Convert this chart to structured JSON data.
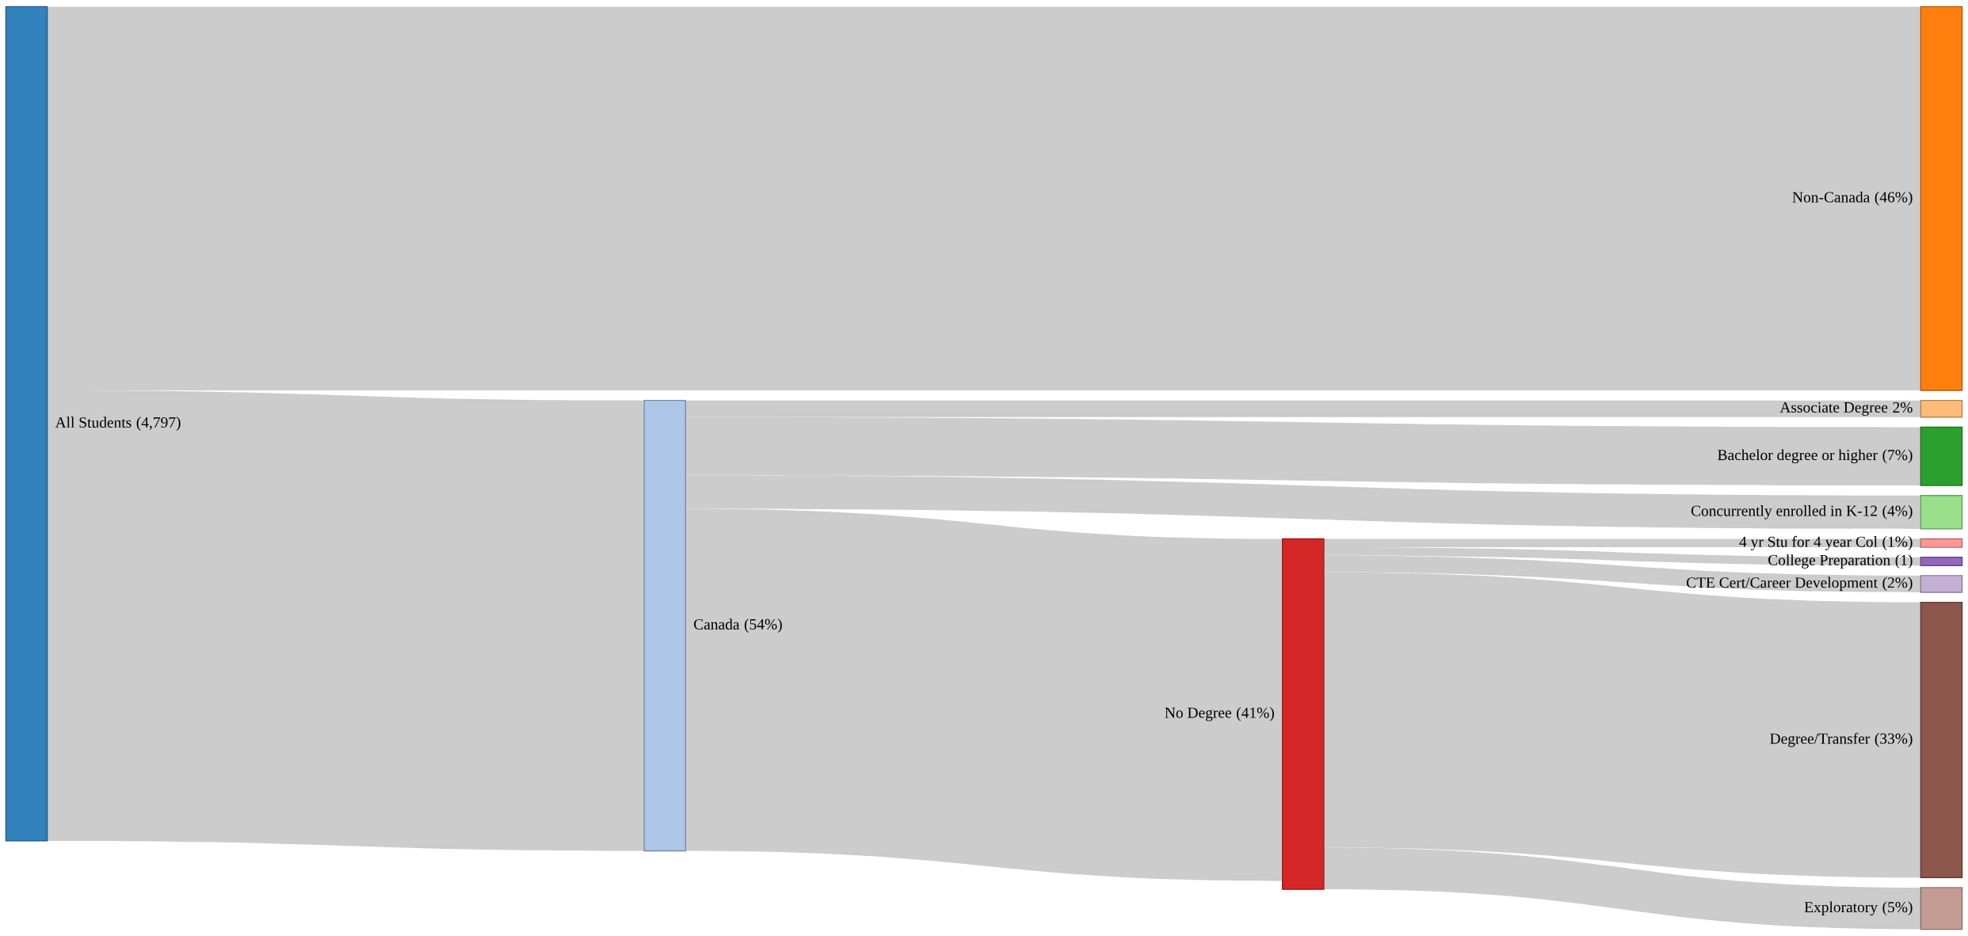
{
  "chart_data": {
    "type": "other",
    "categories": [
      "All Students",
      "Canada",
      "No Degree",
      "Non-Canada",
      "Associate Degree",
      "Bachelor degree or higher",
      "Concurrently enrolled in K-12",
      "4 yr Stu for 4 year Col",
      "College Preparation",
      "CTE Cert/Career Development",
      "Degree/Transfer",
      "Exploratory"
    ],
    "colors": [
      "#3182bd",
      "#aec7e8",
      "#d62728",
      "#ff7f0e",
      "#ffbb78",
      "#2ca02c",
      "#98df8a",
      "#ff9896",
      "#9467bd",
      "#c5b0d5",
      "#8c564b",
      "#c49c94"
    ],
    "series": [
      {
        "color": "#cccccc",
        "values": [
          4797,
          54,
          41,
          46,
          2,
          7,
          4,
          1,
          1,
          2,
          33,
          5
        ],
        "value_labels": [
          "(4,797)",
          "(54%)",
          "(41%)",
          "(46%)",
          "2%",
          "(7%)",
          "(4%)",
          "(1%)",
          "(1)",
          "(2%)",
          "(33%)",
          "(5%)"
        ]
      }
    ]
  }
}
